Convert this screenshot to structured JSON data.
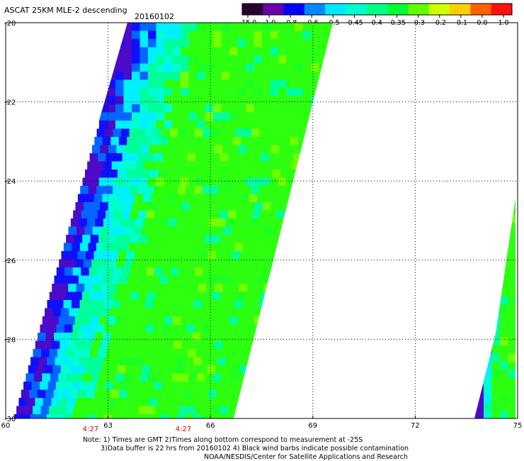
{
  "header": {
    "title": "ASCAT 25KM MLE-2 descending",
    "date": "20160102"
  },
  "colorbar": {
    "labels": [
      "-15.0",
      "-1.0",
      "-0.8",
      "-0.6",
      "-0.5",
      "-0.45",
      "-0.4",
      "-0.35",
      "-0.3",
      "-0.2",
      "-0.1",
      "0.0",
      "1.0"
    ],
    "colors": [
      "#2a0030",
      "#6a00a8",
      "#0000ff",
      "#0088ff",
      "#00e8ff",
      "#00ffcc",
      "#00ff88",
      "#00ff30",
      "#60ff00",
      "#d0ff00",
      "#ffd000",
      "#ff6000",
      "#ff1010"
    ]
  },
  "map": {
    "lon_ticks": [
      "60",
      "63",
      "66",
      "69",
      "72",
      "75"
    ],
    "lat_ticks": [
      "-20",
      "-22",
      "-24",
      "-26",
      "-28",
      "-30"
    ],
    "time_labels": [
      "4:27",
      "4:27"
    ],
    "lon_range": [
      60,
      75
    ],
    "lat_range": [
      -30,
      -20
    ],
    "grid": true,
    "colors": {
      "background": "#ffffff",
      "gridline": "#000000",
      "time_label": "#cc0000"
    }
  },
  "footer": {
    "note1": "Note: 1) Times are GMT 2)Times along bottom correspond to measurement at -25S",
    "note2": "3)Data buffer is 22 hrs from 20160102 4) Black wind barbs indicate possible contamination",
    "credit": "NOAA/NESDIS/Center for Satellite Applications and Research"
  }
}
